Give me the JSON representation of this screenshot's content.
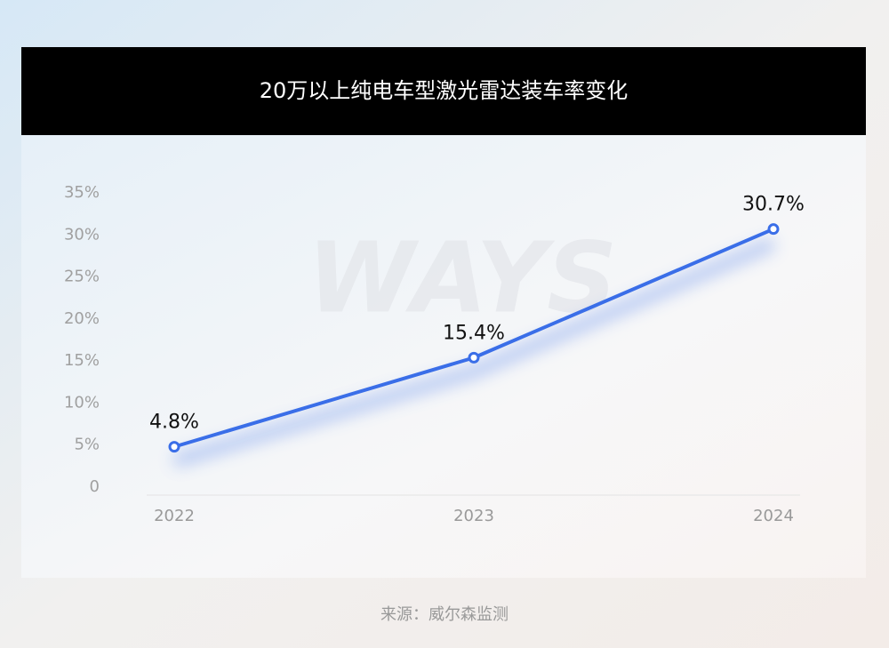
{
  "chart_data": {
    "type": "line",
    "title": "20万以上纯电车型激光雷达装车率变化",
    "categories": [
      "2022",
      "2023",
      "2024"
    ],
    "series": [
      {
        "name": "激光雷达装车率",
        "color": "#3a6ee8",
        "values": [
          4.8,
          15.4,
          30.7
        ],
        "value_labels": [
          "4.8%",
          "15.4%",
          "30.7%"
        ]
      }
    ],
    "ylim": [
      0,
      35
    ],
    "yticks": [
      0,
      {
        "value": 5,
        "label": "5%"
      },
      {
        "value": 10,
        "label": "10%"
      },
      {
        "value": 15,
        "label": "15%"
      },
      {
        "value": 20,
        "label": "20%"
      },
      {
        "value": 25,
        "label": "25%"
      },
      {
        "value": 30,
        "label": "30%"
      },
      {
        "value": 35,
        "label": "35%"
      }
    ],
    "grid": false,
    "watermark": "WAYS",
    "source": "来源：威尔森监测"
  }
}
